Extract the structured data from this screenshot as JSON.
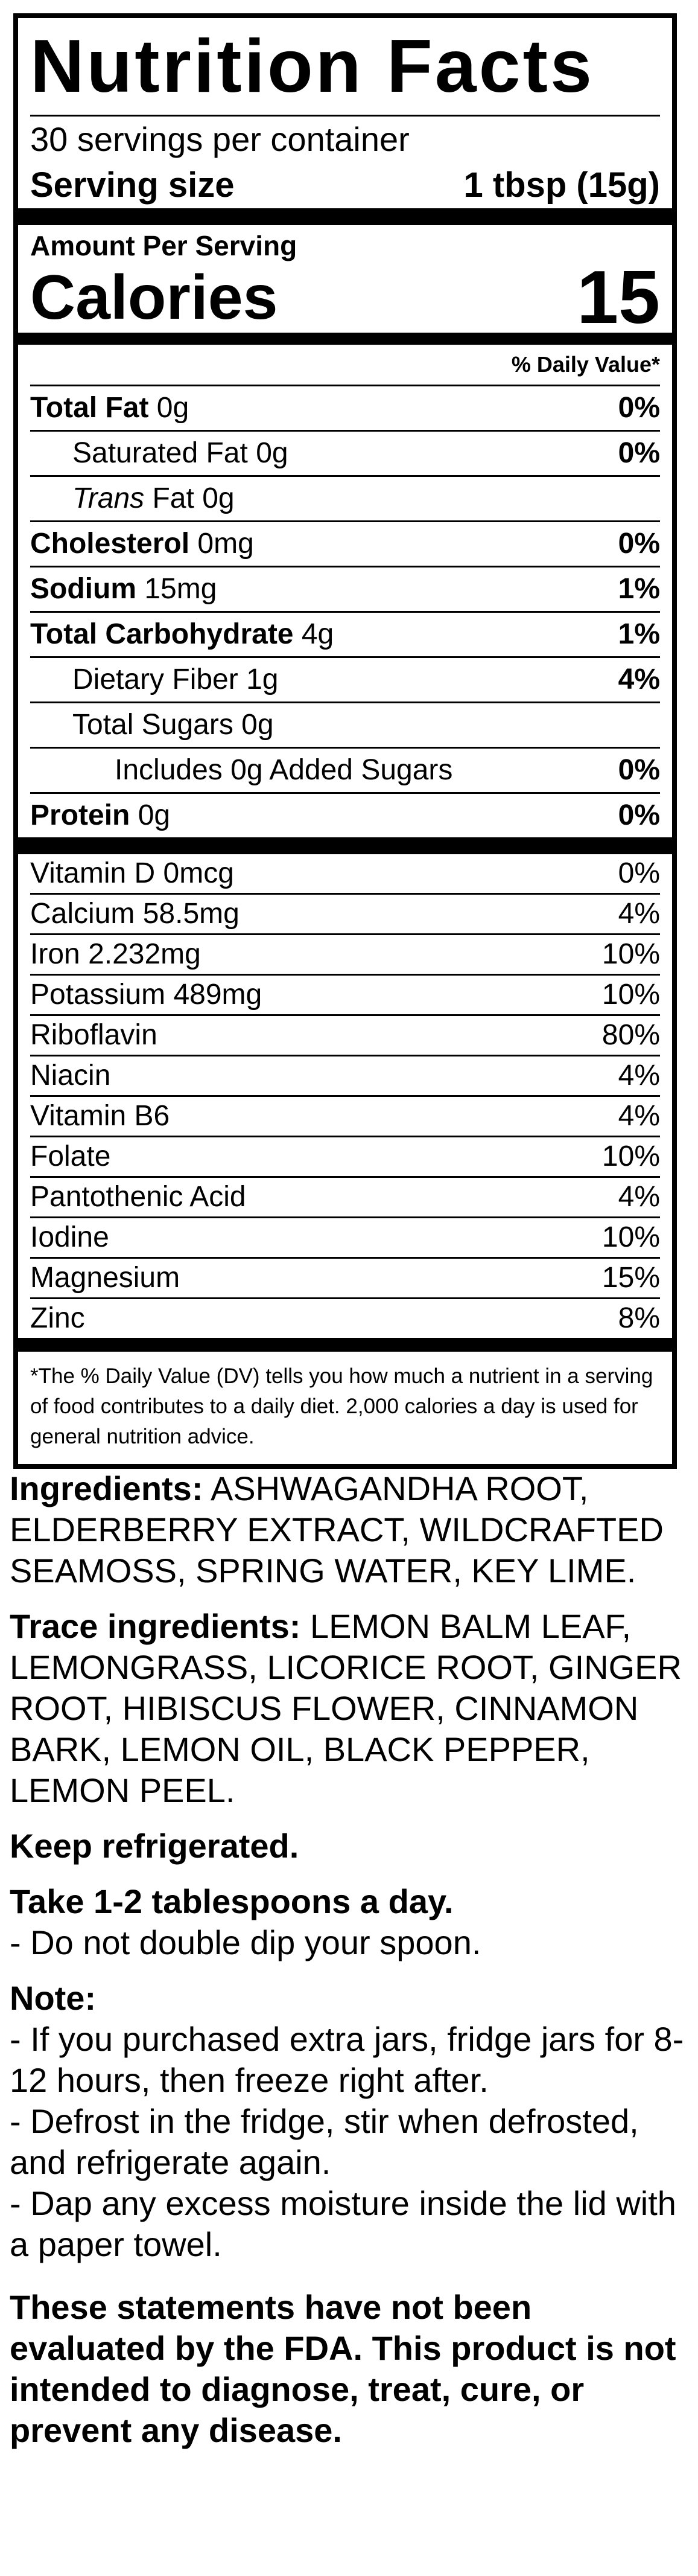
{
  "nutrition_facts": {
    "title": "Nutrition Facts",
    "servings": "30 servings per container",
    "serving_size_label": "Serving size",
    "serving_size_value": "1 tbsp (15g)",
    "amount_per_serving": "Amount Per Serving",
    "calories_label": "Calories",
    "calories_value": 15,
    "daily_value_header": "% Daily Value*",
    "nutrients": [
      {
        "label": "Total Fat",
        "amount": "0g",
        "dv": "0%"
      },
      {
        "label": "Saturated Fat",
        "amount": "0g",
        "dv": "0%"
      },
      {
        "label_italic": "Trans",
        "label": "Fat",
        "amount": "0g"
      },
      {
        "label": "Cholesterol",
        "amount": "0mg",
        "dv": "0%"
      },
      {
        "label": "Sodium",
        "amount": "15mg",
        "dv": "1%"
      },
      {
        "label": "Total Carbohydrate",
        "amount": "4g",
        "dv": "1%"
      },
      {
        "label": "Dietary Fiber",
        "amount": "1g",
        "dv": "4%"
      },
      {
        "label": "Total Sugars",
        "amount": "0g"
      },
      {
        "label": "Includes 0g Added Sugars",
        "dv": "0%"
      },
      {
        "label": "Protein",
        "amount": "0g",
        "dv": "0%"
      }
    ],
    "vitamins": [
      {
        "name": "Vitamin D",
        "amount": "0mcg",
        "dv": "0%"
      },
      {
        "name": "Calcium",
        "amount": "58.5mg",
        "dv": "4%"
      },
      {
        "name": "Iron",
        "amount": "2.232mg",
        "dv": "10%"
      },
      {
        "name": "Potassium",
        "amount": "489mg",
        "dv": "10%"
      },
      {
        "name": "Riboflavin",
        "dv": "80%"
      },
      {
        "name": "Niacin",
        "dv": "4%"
      },
      {
        "name": "Vitamin B6",
        "dv": "4%"
      },
      {
        "name": "Folate",
        "dv": "10%"
      },
      {
        "name": "Pantothenic Acid",
        "dv": "4%"
      },
      {
        "name": "Iodine",
        "dv": "10%"
      },
      {
        "name": "Magnesium",
        "dv": "15%"
      },
      {
        "name": "Zinc",
        "dv": "8%"
      }
    ],
    "footnote": "*The % Daily Value (DV) tells you how much a nutrient in a serving of food contributes to a daily diet. 2,000 calories a day is used for general nutrition advice."
  },
  "label": {
    "ingredients": {
      "heading": "Ingredients:",
      "text": "ASHWAGANDHA ROOT, ELDERBERRY EXTRACT, WILDCRAFTED SEAMOSS, SPRING WATER, KEY LIME."
    },
    "trace": {
      "heading": "Trace ingredients:",
      "text": "LEMON BALM LEAF, LEMONGRASS, LICORICE ROOT, GINGER ROOT, HIBISCUS FLOWER, CINNAMON BARK, LEMON OIL, BLACK PEPPER, LEMON PEEL."
    },
    "storage": "Keep refrigerated.",
    "usage": {
      "heading": "Take 1-2 tablespoons a day.",
      "lines": [
        "- Do not double dip your spoon."
      ]
    },
    "note": {
      "heading": "Note:",
      "lines": [
        "- If you purchased extra jars, fridge jars for 8-12 hours, then freeze right after.",
        "- Defrost in the fridge, stir when defrosted, and refrigerate again.",
        "- Dap any excess moisture inside the lid with a paper towel."
      ]
    },
    "disclaimer": "These statements have not been evaluated by the FDA. This product is not intended to diagnose, treat, cure, or prevent any disease."
  }
}
